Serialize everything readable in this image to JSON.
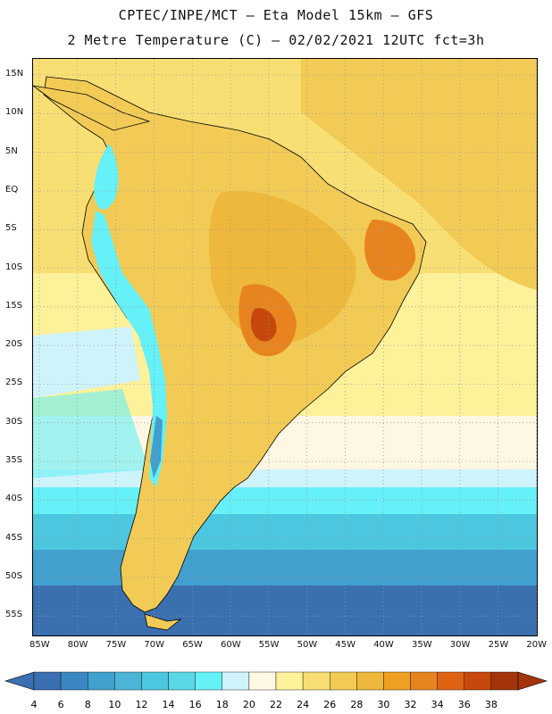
{
  "header": {
    "line1": "CPTEC/INPE/MCT –  Eta Model 15km – GFS",
    "line2": "2 Metre Temperature (C) – 02/02/2021 12UTC fct=3h"
  },
  "map": {
    "lat_labels": [
      "15N",
      "10N",
      "5N",
      "EQ",
      "5S",
      "10S",
      "15S",
      "20S",
      "25S",
      "30S",
      "35S",
      "40S",
      "45S",
      "50S",
      "55S"
    ],
    "lon_labels": [
      "85W",
      "80W",
      "75W",
      "70W",
      "65W",
      "60W",
      "55W",
      "50W",
      "45W",
      "40W",
      "35W",
      "30W",
      "25W",
      "20W"
    ]
  },
  "colorbar": {
    "values": [
      "4",
      "6",
      "8",
      "10",
      "12",
      "14",
      "16",
      "18",
      "20",
      "22",
      "24",
      "26",
      "28",
      "30",
      "32",
      "34",
      "36",
      "38"
    ],
    "colors": [
      "#3a6fb0",
      "#3b87c2",
      "#41a0cd",
      "#4bb5d7",
      "#4cc7df",
      "#5ad8e6",
      "#66f0f7",
      "#cff3fb",
      "#fdf7e3",
      "#fdf19a",
      "#f8de72",
      "#f2cb56",
      "#edb83b",
      "#ef9f22",
      "#e8841f",
      "#dd6214",
      "#c6480c",
      "#a4350a"
    ],
    "low_arrow_color": "#3a6fb0",
    "high_arrow_color": "#a4350a"
  },
  "colors": {
    "ocean_warm": "#f8df74",
    "ocean_mid": "#fdf19a",
    "ocean_pale": "#fdf7e3",
    "ocean_cool1": "#cff3fb",
    "ocean_cool2": "#66f0f7",
    "ocean_cool3": "#4cc7df",
    "ocean_cool4": "#41a0cd",
    "ocean_cold": "#3a6fb0",
    "land_base": "#f2cb56",
    "land_hot": "#edb83b",
    "land_hotter": "#e8841f",
    "land_hottest": "#c6480c",
    "andes_cold": "#66f0f7",
    "andes_colder": "#41a0cd"
  }
}
